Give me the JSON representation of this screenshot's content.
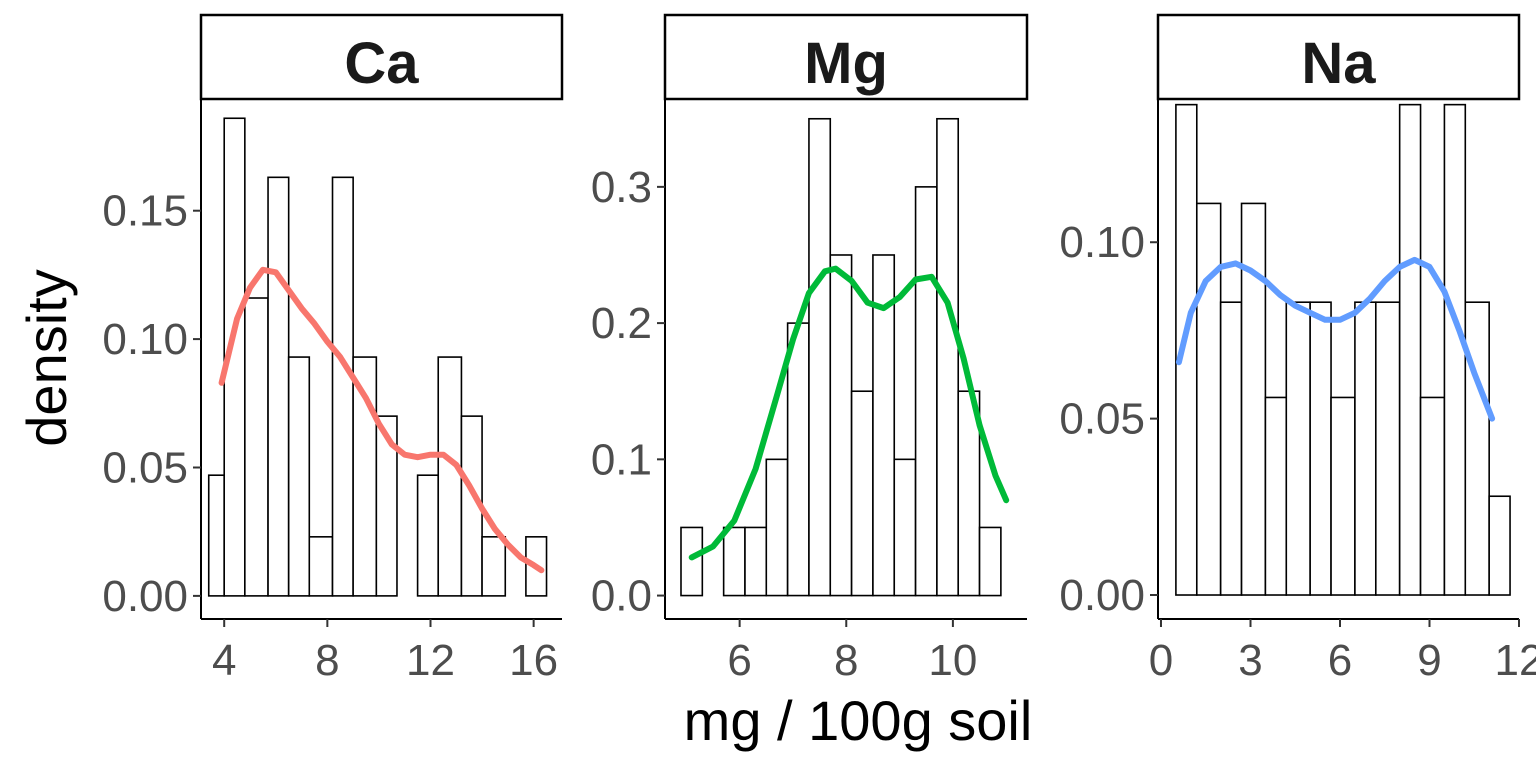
{
  "chart_data": {
    "type": "bar",
    "xlabel": "mg / 100g soil",
    "ylabel": "density",
    "grid": false,
    "facets": [
      {
        "name": "Ca",
        "density_color": "#F8766D",
        "xlim": [
          3.1,
          17.1
        ],
        "ylim": [
          -0.009,
          0.1935
        ],
        "xticks": [
          {
            "value": 4,
            "label": "4"
          },
          {
            "value": 8,
            "label": "8"
          },
          {
            "value": 12,
            "label": "12"
          },
          {
            "value": 16,
            "label": "16"
          }
        ],
        "yticks": [
          {
            "value": 0,
            "label": "0.00"
          },
          {
            "value": 0.05,
            "label": "0.05"
          },
          {
            "value": 0.1,
            "label": "0.10"
          },
          {
            "value": 0.15,
            "label": "0.15"
          }
        ],
        "bin_edges": [
          3.4,
          4.0,
          4.8,
          5.7,
          6.5,
          7.3,
          8.2,
          9.0,
          9.9,
          10.7,
          11.5,
          12.3,
          13.2,
          14.0,
          14.9,
          15.7,
          16.5
        ],
        "bar_values": [
          0.047,
          0.186,
          0.116,
          0.163,
          0.093,
          0.023,
          0.163,
          0.093,
          0.07,
          0.0,
          0.047,
          0.093,
          0.07,
          0.023,
          0.0,
          0.023
        ],
        "density": {
          "x": [
            3.9,
            4.5,
            5.0,
            5.5,
            6.0,
            6.5,
            7.0,
            7.5,
            8.0,
            8.5,
            9.0,
            9.5,
            10.0,
            10.5,
            11.0,
            11.5,
            12.0,
            12.5,
            13.0,
            13.5,
            14.0,
            14.5,
            15.0,
            15.5,
            16.0,
            16.3
          ],
          "y": [
            0.083,
            0.108,
            0.12,
            0.127,
            0.126,
            0.119,
            0.112,
            0.106,
            0.099,
            0.093,
            0.085,
            0.077,
            0.067,
            0.059,
            0.055,
            0.054,
            0.055,
            0.055,
            0.051,
            0.043,
            0.034,
            0.026,
            0.02,
            0.015,
            0.012,
            0.01
          ]
        }
      },
      {
        "name": "Mg",
        "density_color": "#00BA38",
        "xlim": [
          4.6,
          11.39
        ],
        "ylim": [
          -0.0172,
          0.3645
        ],
        "xticks": [
          {
            "value": 6,
            "label": "6"
          },
          {
            "value": 8,
            "label": "8"
          },
          {
            "value": 10,
            "label": "10"
          }
        ],
        "yticks": [
          {
            "value": 0,
            "label": "0.0"
          },
          {
            "value": 0.1,
            "label": "0.1"
          },
          {
            "value": 0.2,
            "label": "0.2"
          },
          {
            "value": 0.3,
            "label": "0.3"
          }
        ],
        "bin_edges": [
          4.9,
          5.3,
          5.7,
          6.1,
          6.5,
          6.9,
          7.3,
          7.7,
          8.1,
          8.5,
          8.9,
          9.3,
          9.7,
          10.1,
          10.5,
          10.9,
          11.3
        ],
        "bar_values": [
          0.05,
          0.0,
          0.05,
          0.05,
          0.1,
          0.2,
          0.35,
          0.25,
          0.15,
          0.25,
          0.1,
          0.3,
          0.35,
          0.15,
          0.05,
          0.0
        ],
        "density": {
          "x": [
            5.1,
            5.5,
            5.9,
            6.3,
            6.7,
            7.0,
            7.3,
            7.6,
            7.8,
            8.1,
            8.4,
            8.7,
            9.0,
            9.3,
            9.6,
            9.9,
            10.2,
            10.5,
            10.8,
            11.0
          ],
          "y": [
            0.028,
            0.036,
            0.055,
            0.093,
            0.147,
            0.188,
            0.222,
            0.238,
            0.24,
            0.231,
            0.215,
            0.211,
            0.219,
            0.232,
            0.234,
            0.215,
            0.174,
            0.125,
            0.088,
            0.07
          ]
        }
      },
      {
        "name": "Na",
        "density_color": "#619CFF",
        "xlim": [
          -0.1,
          12.0
        ],
        "ylim": [
          -0.0068,
          0.1406
        ],
        "xticks": [
          {
            "value": 0,
            "label": "0"
          },
          {
            "value": 3,
            "label": "3"
          },
          {
            "value": 6,
            "label": "6"
          },
          {
            "value": 9,
            "label": "9"
          },
          {
            "value": 12,
            "label": "12"
          }
        ],
        "yticks": [
          {
            "value": 0,
            "label": "0.00"
          },
          {
            "value": 0.05,
            "label": "0.05"
          },
          {
            "value": 0.1,
            "label": "0.10"
          }
        ],
        "bin_edges": [
          0.5,
          1.2,
          2.0,
          2.7,
          3.5,
          4.2,
          5.0,
          5.7,
          6.5,
          7.2,
          8.0,
          8.7,
          9.5,
          10.2,
          11.0,
          11.7
        ],
        "bar_values": [
          0.139,
          0.111,
          0.083,
          0.111,
          0.056,
          0.083,
          0.083,
          0.056,
          0.083,
          0.083,
          0.139,
          0.056,
          0.139,
          0.083,
          0.028
        ],
        "density": {
          "x": [
            0.6,
            1.0,
            1.5,
            2.0,
            2.5,
            3.0,
            3.5,
            4.0,
            4.5,
            5.0,
            5.5,
            6.0,
            6.5,
            7.0,
            7.5,
            8.0,
            8.5,
            9.0,
            9.5,
            10.0,
            10.5,
            11.1
          ],
          "y": [
            0.066,
            0.08,
            0.089,
            0.093,
            0.094,
            0.092,
            0.089,
            0.085,
            0.082,
            0.08,
            0.078,
            0.078,
            0.08,
            0.084,
            0.089,
            0.093,
            0.095,
            0.093,
            0.086,
            0.075,
            0.063,
            0.05
          ]
        }
      }
    ]
  }
}
